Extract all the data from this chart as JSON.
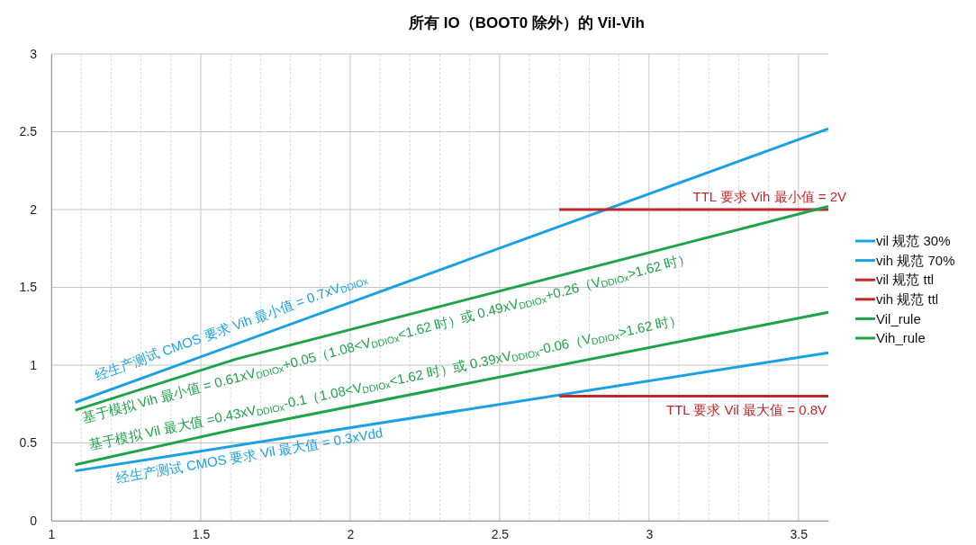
{
  "chart_data": {
    "type": "line",
    "title": "所有 IO（BOOT0 除外）的 Vil-Vih",
    "xlim": [
      1,
      3.6
    ],
    "xticks": [
      1,
      {
        "value": 1.1,
        "label": null
      },
      {
        "value": 1.2,
        "label": null
      },
      {
        "value": 1.3,
        "label": null
      },
      {
        "value": 1.4,
        "label": null
      },
      1.5,
      {
        "value": 1.6,
        "label": null
      },
      {
        "value": 1.7,
        "label": null
      },
      {
        "value": 1.8,
        "label": null
      },
      {
        "value": 1.9,
        "label": null
      },
      2,
      {
        "value": 2.1,
        "label": null
      },
      {
        "value": 2.2,
        "label": null
      },
      {
        "value": 2.3,
        "label": null
      },
      {
        "value": 2.4,
        "label": null
      },
      2.5,
      {
        "value": 2.6,
        "label": null
      },
      {
        "value": 2.7,
        "label": null
      },
      {
        "value": 2.8,
        "label": null
      },
      {
        "value": 2.9,
        "label": null
      },
      3,
      {
        "value": 3.1,
        "label": null
      },
      {
        "value": 3.2,
        "label": null
      },
      {
        "value": 3.3,
        "label": null
      },
      {
        "value": 3.4,
        "label": null
      },
      3.5
    ],
    "ylim": [
      0,
      3
    ],
    "yticks": [
      0,
      0.5,
      1,
      1.5,
      2,
      2.5,
      3
    ],
    "grid": true,
    "legend": "right",
    "line_style": "solid",
    "marker": "none",
    "series": [
      {
        "name": "vil 规范 30%",
        "color": "#1ba1e2",
        "x": [
          1.08,
          3.6
        ],
        "values": [
          0.32,
          1.08
        ]
      },
      {
        "name": "vih 规范 70%",
        "color": "#1ba1e2",
        "x": [
          1.08,
          3.6
        ],
        "values": [
          0.76,
          2.52
        ]
      },
      {
        "name": "vil 规范 ttl",
        "color": "#c0272d",
        "x": [
          2.7,
          3.6
        ],
        "values": [
          0.8,
          0.8
        ]
      },
      {
        "name": "vih 规范 ttl",
        "color": "#c0272d",
        "x": [
          2.7,
          3.6
        ],
        "values": [
          2,
          2
        ]
      },
      {
        "name": "Vil_rule",
        "color": "#1fa34a",
        "x": [
          1.08,
          1.62,
          3.6
        ],
        "values": [
          0.36,
          0.59,
          1.34
        ]
      },
      {
        "name": "Vih_rule",
        "color": "#1fa34a",
        "x": [
          1.08,
          1.62,
          3.6
        ],
        "values": [
          0.71,
          1.04,
          2.02
        ]
      }
    ],
    "annotations": [
      "经生产测试 CMOS 要求 Vih 最小值 = 0.7xV$_{DDIOx}$",
      "TTL 要求 Vih 最小值 = 2V",
      "基于模拟 Vih 最小值 = 0.61xV$_{DDIOx}$+0.05（1.08<V$_{DDIOx}$<1.62 时）或 0.49xV$_{DDIOx}$+0.26（V$_{DDIOx}$>1.62 时）",
      "基于模拟 Vil 最大值 =0.43xV$_{DDIOx}$-0.1（1.08<V$_{DDIOx}$<1.62 时）或 0.39xV$_{DDIOx}$-0.06（V$_{DDIOx}$>1.62 时）",
      "TTL 要求 Vil 最大值 = 0.8V",
      "经生产测试 CMOS 要求 Vil 最大值 = 0.3xVdd"
    ]
  }
}
